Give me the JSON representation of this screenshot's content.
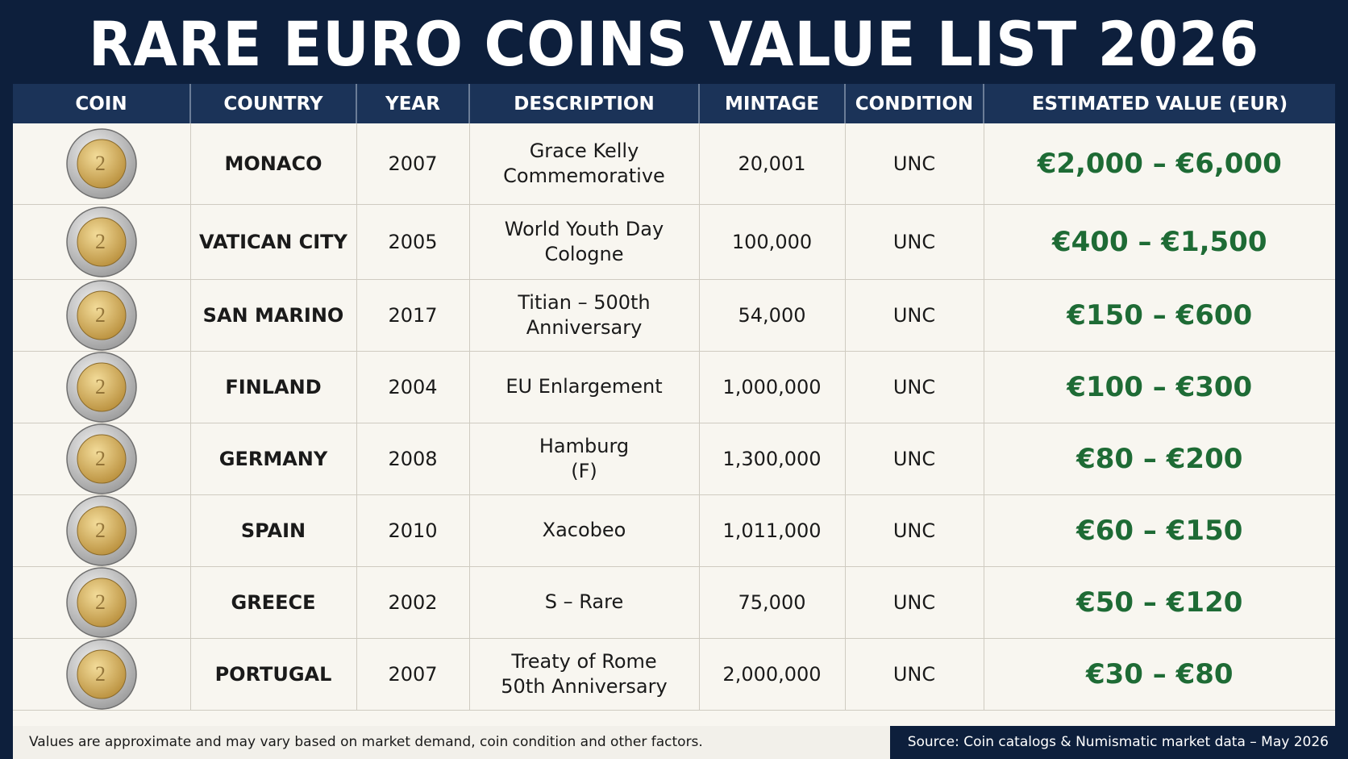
{
  "title": "RARE EURO COINS VALUE LIST 2026",
  "table": {
    "headers": [
      "COIN",
      "COUNTRY",
      "YEAR",
      "DESCRIPTION",
      "MINTAGE",
      "CONDITION",
      "ESTIMATED VALUE (EUR)"
    ],
    "rows": [
      {
        "coin_icon": "2-euro-coin-icon",
        "country": "MONACO",
        "year": "2007",
        "desc1": "Grace Kelly",
        "desc2": "Commemorative",
        "mintage": "20,001",
        "condition": "UNC",
        "value": "€2,000 – €6,000"
      },
      {
        "coin_icon": "2-euro-coin-icon",
        "country": "VATICAN CITY",
        "year": "2005",
        "desc1": "World Youth Day",
        "desc2": "Cologne",
        "mintage": "100,000",
        "condition": "UNC",
        "value": "€400 – €1,500"
      },
      {
        "coin_icon": "2-euro-coin-icon",
        "country": "SAN MARINO",
        "year": "2017",
        "desc1": "Titian – 500th",
        "desc2": "Anniversary",
        "mintage": "54,000",
        "condition": "UNC",
        "value": "€150 – €600"
      },
      {
        "coin_icon": "2-euro-coin-icon",
        "country": "FINLAND",
        "year": "2004",
        "desc1": "EU Enlargement",
        "desc2": "",
        "mintage": "1,000,000",
        "condition": "UNC",
        "value": "€100 – €300"
      },
      {
        "coin_icon": "2-euro-coin-icon",
        "country": "GERMANY",
        "year": "2008",
        "desc1": "Hamburg",
        "desc2": "(F)",
        "mintage": "1,300,000",
        "condition": "UNC",
        "value": "€80 – €200"
      },
      {
        "coin_icon": "2-euro-coin-icon",
        "country": "SPAIN",
        "year": "2010",
        "desc1": "Xacobeo",
        "desc2": "",
        "mintage": "1,011,000",
        "condition": "UNC",
        "value": "€60 – €150"
      },
      {
        "coin_icon": "2-euro-coin-icon",
        "country": "GREECE",
        "year": "2002",
        "desc1": "S – Rare",
        "desc2": "",
        "mintage": "75,000",
        "condition": "UNC",
        "value": "€50 – €120"
      },
      {
        "coin_icon": "2-euro-coin-icon",
        "country": "PORTUGAL",
        "year": "2007",
        "desc1": "Treaty of Rome",
        "desc2": "50th Anniversary",
        "mintage": "2,000,000",
        "condition": "UNC",
        "value": "€30 – €80"
      }
    ]
  },
  "footer": {
    "note": "Values are approximate and may vary based on market demand, coin condition and other factors.",
    "source": "Source: Coin catalogs & Numismatic market data – May 2026"
  },
  "colors": {
    "navy": "#0d1f3c",
    "header": "#1b3358",
    "value_green": "#1e6b35",
    "row_bg": "#f8f6f0"
  }
}
